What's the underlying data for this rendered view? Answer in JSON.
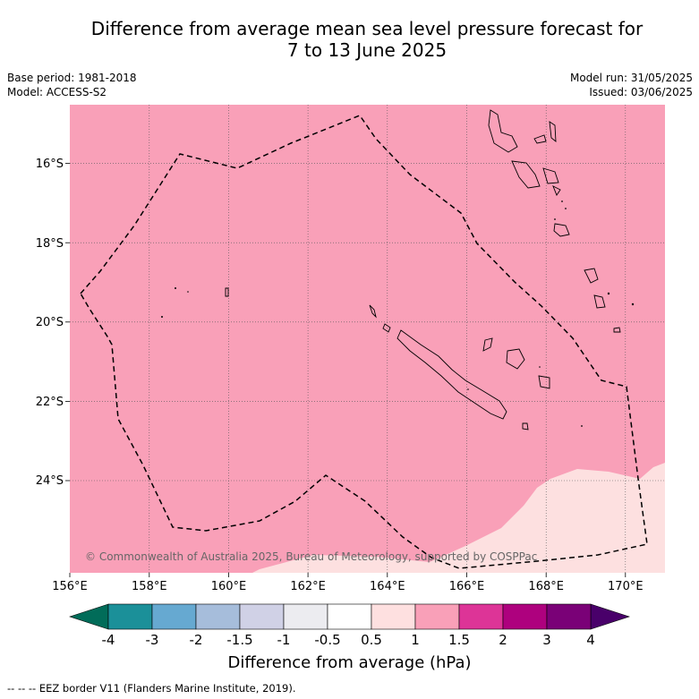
{
  "header": {
    "title_line1": "Difference from average mean sea level pressure forecast for",
    "title_line2": "7 to 13 June 2025",
    "base_period": "Base period: 1981-2018",
    "model": "Model: ACCESS-S2",
    "model_run": "Model run: 31/05/2025",
    "issued": "Issued: 03/06/2025"
  },
  "map": {
    "lon_ticks": [
      "156°E",
      "158°E",
      "160°E",
      "162°E",
      "164°E",
      "166°E",
      "168°E",
      "170°E"
    ],
    "lat_ticks": [
      "16°S",
      "18°S",
      "20°S",
      "22°S",
      "24°S"
    ],
    "copyright": "© Commonwealth of Australia 2025, Bureau of Meteorology, supported by COSPPac",
    "main_fill": "#f9a0b8",
    "low_fill": "#fde0e0",
    "fields": [
      {
        "range_hpa": "1 to 1.5",
        "area": "most of map"
      },
      {
        "range_hpa": "0.5 to 1",
        "area": "south-east corner"
      }
    ]
  },
  "colorbar": {
    "labels": [
      "-4",
      "-3",
      "-2",
      "-1.5",
      "-1",
      "-0.5",
      "0.5",
      "1",
      "1.5",
      "2",
      "3",
      "4"
    ],
    "colors": [
      "#1b9099",
      "#66a9d1",
      "#a6bddb",
      "#d0d1e6",
      "#ececf0",
      "#ffffff",
      "#fee0e0",
      "#f9a0b8",
      "#dd3497",
      "#ae017e",
      "#7a0177"
    ],
    "low_extend_color": "#016c59",
    "high_extend_color": "#49006a",
    "title": "Difference from average (hPa)"
  },
  "legend": {
    "eez": "--  --  -- EEZ border V11 (Flanders Marine Institute, 2019)."
  }
}
